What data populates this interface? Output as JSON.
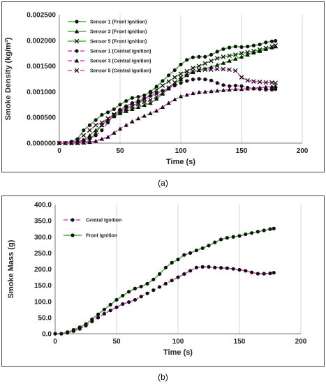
{
  "panels": [
    {
      "caption": "(a)",
      "chart_data": {
        "type": "line",
        "xlabel": "Time (s)",
        "ylabel": "Smoke Density (kg/m³)",
        "xlim": [
          0,
          200
        ],
        "ylim": [
          0,
          0.0025
        ],
        "xticks": [
          0,
          50,
          100,
          150,
          200
        ],
        "xtick_labels": [
          "0",
          "50",
          "100",
          "150",
          "200"
        ],
        "yticks": [
          0,
          0.0005,
          0.001,
          0.0015,
          0.002,
          0.0025
        ],
        "ytick_labels": [
          "0.000000",
          "0.000500",
          "0.001000",
          "0.001500",
          "0.002000",
          "0.002500"
        ],
        "grid": "vertical",
        "legend": "top-left",
        "series": [
          {
            "name": "Sensor 1 (Front Ignition)",
            "color": "#4caf3a",
            "marker": "circle",
            "dash": "solid",
            "x": [
              0,
              5,
              10,
              15,
              20,
              25,
              30,
              35,
              40,
              45,
              50,
              55,
              60,
              65,
              70,
              75,
              80,
              85,
              90,
              95,
              100,
              105,
              110,
              115,
              120,
              125,
              130,
              135,
              140,
              145,
              150,
              155,
              160,
              165,
              170,
              175,
              178
            ],
            "y": [
              0.0,
              0.0,
              3e-05,
              8e-05,
              0.00025,
              0.00035,
              0.00045,
              0.00055,
              0.0006,
              0.00066,
              0.00075,
              0.00082,
              0.00088,
              0.0009,
              0.00093,
              0.001,
              0.0011,
              0.00121,
              0.00132,
              0.00142,
              0.00153,
              0.00162,
              0.00167,
              0.00168,
              0.00168,
              0.00172,
              0.00178,
              0.00183,
              0.00186,
              0.00188,
              0.00187,
              0.00188,
              0.0019,
              0.00192,
              0.00196,
              0.00198,
              0.00199
            ]
          },
          {
            "name": "Sensor 3 (Front Ignition)",
            "color": "#4caf3a",
            "marker": "triangle",
            "dash": "solid",
            "x": [
              0,
              5,
              10,
              15,
              20,
              25,
              30,
              35,
              40,
              45,
              50,
              55,
              60,
              65,
              70,
              75,
              80,
              85,
              90,
              95,
              100,
              105,
              110,
              115,
              120,
              125,
              130,
              135,
              140,
              145,
              150,
              155,
              160,
              165,
              170,
              175,
              178
            ],
            "y": [
              0.0,
              0.0,
              0.0,
              1e-05,
              5e-05,
              0.00015,
              0.00025,
              0.00035,
              0.00045,
              0.00052,
              0.00058,
              0.00062,
              0.00066,
              0.0007,
              0.00074,
              0.00078,
              0.00086,
              0.00096,
              0.00106,
              0.00116,
              0.00124,
              0.00132,
              0.00138,
              0.00142,
              0.00145,
              0.00148,
              0.00152,
              0.00156,
              0.0016,
              0.00164,
              0.00168,
              0.00172,
              0.00176,
              0.00179,
              0.00183,
              0.00186,
              0.00188
            ]
          },
          {
            "name": "Sensor 5 (Front Ignition)",
            "color": "#4caf3a",
            "marker": "x",
            "dash": "solid",
            "x": [
              0,
              5,
              10,
              15,
              20,
              25,
              30,
              35,
              40,
              45,
              50,
              55,
              60,
              65,
              70,
              75,
              80,
              85,
              90,
              95,
              100,
              105,
              110,
              115,
              120,
              125,
              130,
              135,
              140,
              145,
              150,
              155,
              160,
              165,
              170,
              175,
              178
            ],
            "y": [
              0.0,
              0.0,
              0.0,
              0.0,
              1e-05,
              5e-05,
              0.0002,
              0.00035,
              0.00048,
              0.00056,
              0.00062,
              0.00068,
              0.00072,
              0.00078,
              0.00085,
              0.00095,
              0.00103,
              0.00112,
              0.0012,
              0.00128,
              0.00135,
              0.0014,
              0.00146,
              0.0015,
              0.00155,
              0.0016,
              0.00165,
              0.00168,
              0.0017,
              0.00172,
              0.00175,
              0.00177,
              0.00179,
              0.00182,
              0.00185,
              0.00188,
              0.0019
            ]
          },
          {
            "name": "Sensor 1 (Central Ignition)",
            "color": "#e040c8",
            "marker": "circle",
            "dash": "dashed",
            "x": [
              0,
              5,
              10,
              15,
              20,
              25,
              30,
              35,
              40,
              45,
              50,
              55,
              60,
              65,
              70,
              75,
              80,
              85,
              90,
              95,
              100,
              105,
              110,
              115,
              120,
              125,
              130,
              135,
              140,
              145,
              150,
              155,
              160,
              165,
              170,
              175,
              178
            ],
            "y": [
              0.0,
              0.0,
              1e-05,
              3e-05,
              6e-05,
              0.0001,
              0.00015,
              0.00025,
              0.0004,
              0.00055,
              0.00065,
              0.00072,
              0.00078,
              0.00082,
              0.00087,
              0.00092,
              0.00097,
              0.00102,
              0.00107,
              0.00112,
              0.00117,
              0.00121,
              0.00124,
              0.00125,
              0.00124,
              0.00122,
              0.00117,
              0.00113,
              0.00111,
              0.00112,
              0.00111,
              0.00108,
              0.00106,
              0.00105,
              0.00104,
              0.00104,
              0.00105
            ]
          },
          {
            "name": "Sensor 3 (Central Ignition)",
            "color": "#e040c8",
            "marker": "triangle",
            "dash": "dashed",
            "x": [
              0,
              5,
              10,
              15,
              20,
              25,
              30,
              35,
              40,
              45,
              50,
              55,
              60,
              65,
              70,
              75,
              80,
              85,
              90,
              95,
              100,
              105,
              110,
              115,
              120,
              125,
              130,
              135,
              140,
              145,
              150,
              155,
              160,
              165,
              170,
              175,
              178
            ],
            "y": [
              0.0,
              0.0,
              0.0,
              0.0,
              1e-05,
              2e-05,
              4e-05,
              8e-05,
              0.00012,
              0.0002,
              0.00028,
              0.00035,
              0.00042,
              0.00048,
              0.00053,
              0.00058,
              0.00063,
              0.0007,
              0.00078,
              0.00085,
              0.00091,
              0.00094,
              0.00097,
              0.00099,
              0.001,
              0.00101,
              0.00102,
              0.00103,
              0.00104,
              0.00105,
              0.00105,
              0.00106,
              0.00107,
              0.00108,
              0.00109,
              0.0011,
              0.00111
            ]
          },
          {
            "name": "Sensor 5 (Central Ignition)",
            "color": "#e040c8",
            "marker": "x",
            "dash": "dashed",
            "x": [
              0,
              5,
              10,
              15,
              20,
              25,
              30,
              35,
              40,
              45,
              50,
              55,
              60,
              65,
              70,
              75,
              80,
              85,
              90,
              95,
              100,
              105,
              110,
              115,
              120,
              125,
              130,
              135,
              140,
              145,
              150,
              155,
              160,
              165,
              170,
              175,
              178
            ],
            "y": [
              0.0,
              0.0,
              0.0,
              5e-05,
              0.00015,
              0.00025,
              0.00035,
              0.0004,
              0.00048,
              0.00055,
              0.0006,
              0.00066,
              0.00071,
              0.00076,
              0.0008,
              0.00084,
              0.0009,
              0.00098,
              0.00108,
              0.00118,
              0.00128,
              0.00135,
              0.0014,
              0.00142,
              0.00143,
              0.00143,
              0.00144,
              0.00144,
              0.00143,
              0.00141,
              0.00128,
              0.00122,
              0.0012,
              0.00119,
              0.00118,
              0.00118,
              0.00117
            ]
          }
        ]
      }
    },
    {
      "caption": "(b)",
      "chart_data": {
        "type": "line",
        "xlabel": "Time (s)",
        "ylabel": "Smoke Mass (g)",
        "xlim": [
          0,
          200
        ],
        "ylim": [
          0,
          400
        ],
        "xticks": [
          0,
          50,
          100,
          150,
          200
        ],
        "xtick_labels": [
          "0",
          "50",
          "100",
          "150",
          "200"
        ],
        "yticks": [
          0,
          50,
          100,
          150,
          200,
          250,
          300,
          350,
          400
        ],
        "ytick_labels": [
          "0.0",
          "50.0",
          "100.0",
          "150.0",
          "200.0",
          "250.0",
          "300.0",
          "350.0",
          "400.0"
        ],
        "grid": "vertical",
        "legend": "top-left",
        "series": [
          {
            "name": "Central Ignition",
            "color": "#e040c8",
            "marker": "circle",
            "dash": "dashed",
            "x": [
              0,
              5,
              10,
              15,
              20,
              25,
              30,
              35,
              40,
              45,
              50,
              55,
              60,
              65,
              70,
              75,
              80,
              85,
              90,
              95,
              100,
              105,
              110,
              115,
              120,
              125,
              130,
              135,
              140,
              145,
              150,
              155,
              160,
              165,
              170,
              175,
              178
            ],
            "y": [
              0,
              0,
              3,
              8,
              15,
              25,
              38,
              50,
              62,
              72,
              82,
              92,
              98,
              105,
              115,
              125,
              135,
              145,
              155,
              165,
              175,
              185,
              195,
              205,
              207,
              207,
              205,
              204,
              203,
              201,
              198,
              195,
              190,
              186,
              186,
              187,
              189
            ]
          },
          {
            "name": "Front Ignition",
            "color": "#4caf3a",
            "marker": "circle",
            "dash": "solid",
            "x": [
              0,
              5,
              10,
              15,
              20,
              25,
              30,
              35,
              40,
              45,
              50,
              55,
              60,
              65,
              70,
              75,
              80,
              85,
              90,
              95,
              100,
              105,
              110,
              115,
              120,
              125,
              130,
              135,
              140,
              145,
              150,
              155,
              160,
              165,
              170,
              175,
              178
            ],
            "y": [
              0,
              0,
              5,
              12,
              20,
              30,
              45,
              60,
              75,
              90,
              105,
              118,
              130,
              140,
              146,
              155,
              168,
              185,
              205,
              220,
              230,
              244,
              250,
              258,
              265,
              273,
              283,
              292,
              297,
              300,
              303,
              308,
              312,
              316,
              320,
              324,
              326
            ]
          }
        ]
      }
    }
  ]
}
